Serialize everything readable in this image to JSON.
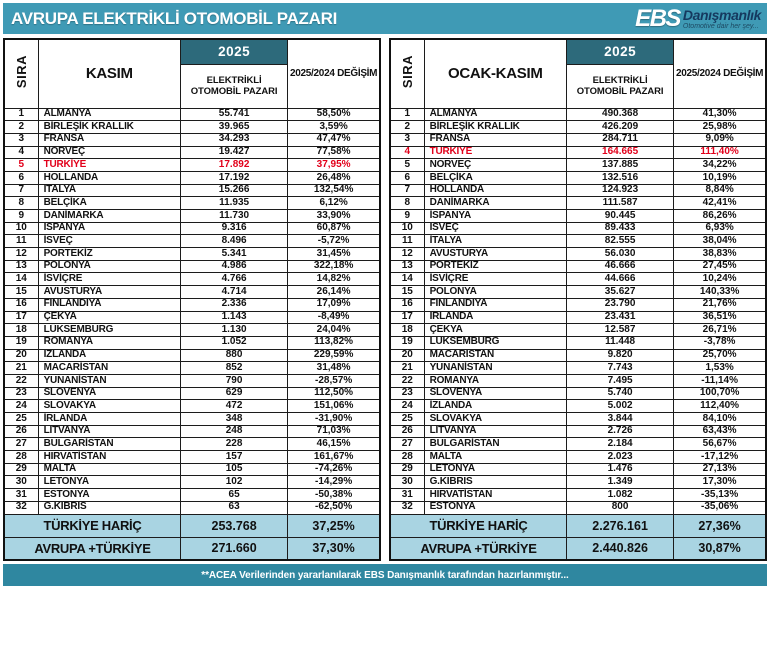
{
  "header": {
    "title": "AVRUPA ELEKTRİKLİ OTOMOBİL PAZARI",
    "logo": {
      "abbr": "EBS",
      "name": "Danışmanlık",
      "tagline": "Otomotive dair her şey..."
    }
  },
  "footer": {
    "note": "**ACEA Verilerinden yararlanılarak  EBS Danışmanlık  tarafından hazırlanmıştır..."
  },
  "colors": {
    "teal": "#3f9ab5",
    "dark_teal": "#2d6a7b",
    "light_blue": "#a9d4e2",
    "footer_teal": "#2f87a0",
    "highlight_red": "#e2001a"
  },
  "chart_data": [
    {
      "type": "table",
      "title": "KASIM",
      "header": {
        "rank": "SIRA",
        "period": "KASIM",
        "year": "2025",
        "market": "ELEKTRİKLİ OTOMOBİL PAZARI",
        "change": "2025/2024 DEĞİŞİM"
      },
      "rows": [
        {
          "rank": "1",
          "country": "ALMANYA",
          "value": "55.741",
          "change": "58,50%"
        },
        {
          "rank": "2",
          "country": "BİRLEŞİK KRALLIK",
          "value": "39.965",
          "change": "3,59%"
        },
        {
          "rank": "3",
          "country": "FRANSA",
          "value": "34.293",
          "change": "47,47%"
        },
        {
          "rank": "4",
          "country": "NORVEÇ",
          "value": "19.427",
          "change": "77,58%"
        },
        {
          "rank": "5",
          "country": "TÜRKİYE",
          "value": "17.892",
          "change": "37,95%",
          "highlight": true
        },
        {
          "rank": "6",
          "country": "HOLLANDA",
          "value": "17.192",
          "change": "26,48%"
        },
        {
          "rank": "7",
          "country": "İTALYA",
          "value": "15.266",
          "change": "132,54%"
        },
        {
          "rank": "8",
          "country": "BELÇİKA",
          "value": "11.935",
          "change": "6,12%"
        },
        {
          "rank": "9",
          "country": "DANİMARKA",
          "value": "11.730",
          "change": "33,90%"
        },
        {
          "rank": "10",
          "country": "İSPANYA",
          "value": "9.316",
          "change": "60,87%"
        },
        {
          "rank": "11",
          "country": "İSVEÇ",
          "value": "8.496",
          "change": "-5,72%"
        },
        {
          "rank": "12",
          "country": "PORTEKİZ",
          "value": "5.341",
          "change": "31,45%"
        },
        {
          "rank": "13",
          "country": "POLONYA",
          "value": "4.986",
          "change": "322,18%"
        },
        {
          "rank": "14",
          "country": "İSVİÇRE",
          "value": "4.766",
          "change": "14,82%"
        },
        {
          "rank": "15",
          "country": "AVUSTURYA",
          "value": "4.714",
          "change": "26,14%"
        },
        {
          "rank": "16",
          "country": "FİNLANDİYA",
          "value": "2.336",
          "change": "17,09%"
        },
        {
          "rank": "17",
          "country": "ÇEKYA",
          "value": "1.143",
          "change": "-8,49%"
        },
        {
          "rank": "18",
          "country": "LÜKSEMBURG",
          "value": "1.130",
          "change": "24,04%"
        },
        {
          "rank": "19",
          "country": "ROMANYA",
          "value": "1.052",
          "change": "113,82%"
        },
        {
          "rank": "20",
          "country": "İZLANDA",
          "value": "880",
          "change": "229,59%"
        },
        {
          "rank": "21",
          "country": "MACARİSTAN",
          "value": "852",
          "change": "31,48%"
        },
        {
          "rank": "22",
          "country": "YUNANİSTAN",
          "value": "790",
          "change": "-28,57%"
        },
        {
          "rank": "23",
          "country": "SLOVENYA",
          "value": "629",
          "change": "112,50%"
        },
        {
          "rank": "24",
          "country": "SLOVAKYA",
          "value": "472",
          "change": "151,06%"
        },
        {
          "rank": "25",
          "country": "İRLANDA",
          "value": "348",
          "change": "-31,90%"
        },
        {
          "rank": "26",
          "country": "LİTVANYA",
          "value": "248",
          "change": "71,03%"
        },
        {
          "rank": "27",
          "country": "BULGARİSTAN",
          "value": "228",
          "change": "46,15%"
        },
        {
          "rank": "28",
          "country": "HIRVATİSTAN",
          "value": "157",
          "change": "161,67%"
        },
        {
          "rank": "29",
          "country": "MALTA",
          "value": "105",
          "change": "-74,26%"
        },
        {
          "rank": "30",
          "country": "LETONYA",
          "value": "102",
          "change": "-14,29%"
        },
        {
          "rank": "31",
          "country": "ESTONYA",
          "value": "65",
          "change": "-50,38%"
        },
        {
          "rank": "32",
          "country": "G.KIBRIS",
          "value": "63",
          "change": "-62,50%"
        }
      ],
      "totals": [
        {
          "label": "TÜRKİYE HARİÇ",
          "value": "253.768",
          "change": "37,25%"
        },
        {
          "label": "AVRUPA +TÜRKİYE",
          "value": "271.660",
          "change": "37,30%"
        }
      ]
    },
    {
      "type": "table",
      "title": "OCAK-KASIM",
      "header": {
        "rank": "SIRA",
        "period": "OCAK-KASIM",
        "year": "2025",
        "market": "ELEKTRİKLİ OTOMOBİL PAZARI",
        "change": "2025/2024 DEĞİŞİM"
      },
      "rows": [
        {
          "rank": "1",
          "country": "ALMANYA",
          "value": "490.368",
          "change": "41,30%"
        },
        {
          "rank": "2",
          "country": "BİRLEŞİK KRALLIK",
          "value": "426.209",
          "change": "25,98%"
        },
        {
          "rank": "3",
          "country": "FRANSA",
          "value": "284.711",
          "change": "9,09%"
        },
        {
          "rank": "4",
          "country": "TÜRKİYE",
          "value": "164.665",
          "change": "111,40%",
          "highlight": true
        },
        {
          "rank": "5",
          "country": "NORVEÇ",
          "value": "137.885",
          "change": "34,22%"
        },
        {
          "rank": "6",
          "country": "BELÇİKA",
          "value": "132.516",
          "change": "10,19%"
        },
        {
          "rank": "7",
          "country": "HOLLANDA",
          "value": "124.923",
          "change": "8,84%"
        },
        {
          "rank": "8",
          "country": "DANİMARKA",
          "value": "111.587",
          "change": "42,41%"
        },
        {
          "rank": "9",
          "country": "İSPANYA",
          "value": "90.445",
          "change": "86,26%"
        },
        {
          "rank": "10",
          "country": "İSVEÇ",
          "value": "89.433",
          "change": "6,93%"
        },
        {
          "rank": "11",
          "country": "İTALYA",
          "value": "82.555",
          "change": "38,04%"
        },
        {
          "rank": "12",
          "country": "AVUSTURYA",
          "value": "56.030",
          "change": "38,83%"
        },
        {
          "rank": "13",
          "country": "PORTEKİZ",
          "value": "46.666",
          "change": "27,45%"
        },
        {
          "rank": "14",
          "country": "İSVİÇRE",
          "value": "44.666",
          "change": "10,24%"
        },
        {
          "rank": "15",
          "country": "POLONYA",
          "value": "35.627",
          "change": "140,33%"
        },
        {
          "rank": "16",
          "country": "FİNLANDİYA",
          "value": "23.790",
          "change": "21,76%"
        },
        {
          "rank": "17",
          "country": "İRLANDA",
          "value": "23.431",
          "change": "36,51%"
        },
        {
          "rank": "18",
          "country": "ÇEKYA",
          "value": "12.587",
          "change": "26,71%"
        },
        {
          "rank": "19",
          "country": "LÜKSEMBURG",
          "value": "11.448",
          "change": "-3,78%"
        },
        {
          "rank": "20",
          "country": "MACARİSTAN",
          "value": "9.820",
          "change": "25,70%"
        },
        {
          "rank": "21",
          "country": "YUNANİSTAN",
          "value": "7.743",
          "change": "1,53%"
        },
        {
          "rank": "22",
          "country": "ROMANYA",
          "value": "7.495",
          "change": "-11,14%"
        },
        {
          "rank": "23",
          "country": "SLOVENYA",
          "value": "5.740",
          "change": "100,70%"
        },
        {
          "rank": "24",
          "country": "İZLANDA",
          "value": "5.002",
          "change": "112,40%"
        },
        {
          "rank": "25",
          "country": "SLOVAKYA",
          "value": "3.844",
          "change": "84,10%"
        },
        {
          "rank": "26",
          "country": "LİTVANYA",
          "value": "2.726",
          "change": "63,43%"
        },
        {
          "rank": "27",
          "country": "BULGARİSTAN",
          "value": "2.184",
          "change": "56,67%"
        },
        {
          "rank": "28",
          "country": "MALTA",
          "value": "2.023",
          "change": "-17,12%"
        },
        {
          "rank": "29",
          "country": "LETONYA",
          "value": "1.476",
          "change": "27,13%"
        },
        {
          "rank": "30",
          "country": "G.KIBRIS",
          "value": "1.349",
          "change": "17,30%"
        },
        {
          "rank": "31",
          "country": "HIRVATİSTAN",
          "value": "1.082",
          "change": "-35,13%"
        },
        {
          "rank": "32",
          "country": "ESTONYA",
          "value": "800",
          "change": "-35,06%"
        }
      ],
      "totals": [
        {
          "label": "TÜRKİYE HARİÇ",
          "value": "2.276.161",
          "change": "27,36%"
        },
        {
          "label": "AVRUPA +TÜRKİYE",
          "value": "2.440.826",
          "change": "30,87%"
        }
      ]
    }
  ]
}
